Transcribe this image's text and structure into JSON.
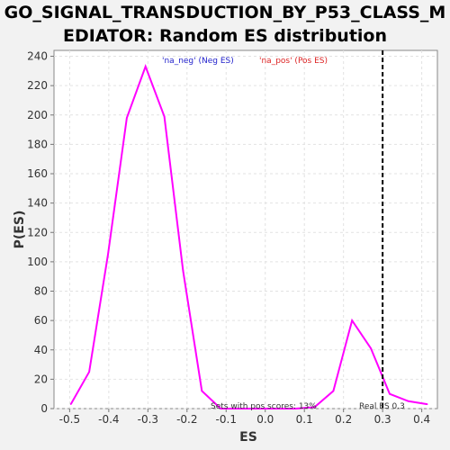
{
  "chart_data": {
    "type": "line",
    "title_line1": "GO_SIGNAL_TRANSDUCTION_BY_P53_CLASS_M",
    "title_line2": "EDIATOR: Random ES distribution",
    "xlabel": "ES",
    "ylabel": "P(ES)",
    "xlim": [
      -0.54,
      0.44
    ],
    "ylim": [
      0,
      244
    ],
    "x_ticks": [
      -0.5,
      -0.4,
      -0.3,
      -0.2,
      -0.1,
      0.0,
      0.1,
      0.2,
      0.3,
      0.4
    ],
    "x_tick_labels": [
      "-0.5",
      "-0.4",
      "-0.3",
      "-0.2",
      "-0.1",
      "0.0",
      "0.1",
      "0.2",
      "0.3",
      "0.4"
    ],
    "y_ticks": [
      0,
      20,
      40,
      60,
      80,
      100,
      120,
      140,
      160,
      180,
      200,
      220,
      240
    ],
    "y_tick_labels": [
      "0",
      "20",
      "40",
      "60",
      "80",
      "100",
      "120",
      "140",
      "160",
      "180",
      "200",
      "220",
      "240"
    ],
    "grid": true,
    "series": [
      {
        "color": "#ff00ff",
        "x": [
          -0.497,
          -0.45,
          -0.402,
          -0.354,
          -0.306,
          -0.258,
          -0.21,
          -0.162,
          -0.114,
          -0.066,
          -0.018,
          0.03,
          0.078,
          0.126,
          0.174,
          0.222,
          0.27,
          0.318,
          0.366,
          0.414
        ],
        "y": [
          3,
          25,
          105,
          198,
          233,
          199,
          94,
          12,
          0,
          0,
          0,
          0,
          0,
          1,
          12,
          60,
          41,
          10,
          5,
          3
        ]
      }
    ],
    "real_es": 0.3,
    "legend": [
      {
        "text": "'na_neg' (Neg ES)",
        "color": "#2222cc"
      },
      {
        "text": "'na_pos' (Pos ES)",
        "color": "#dd2222"
      }
    ],
    "annotations": {
      "sets_text": "Sets with pos scores: 13%",
      "real_es_text": "Real ES 0.3"
    }
  }
}
